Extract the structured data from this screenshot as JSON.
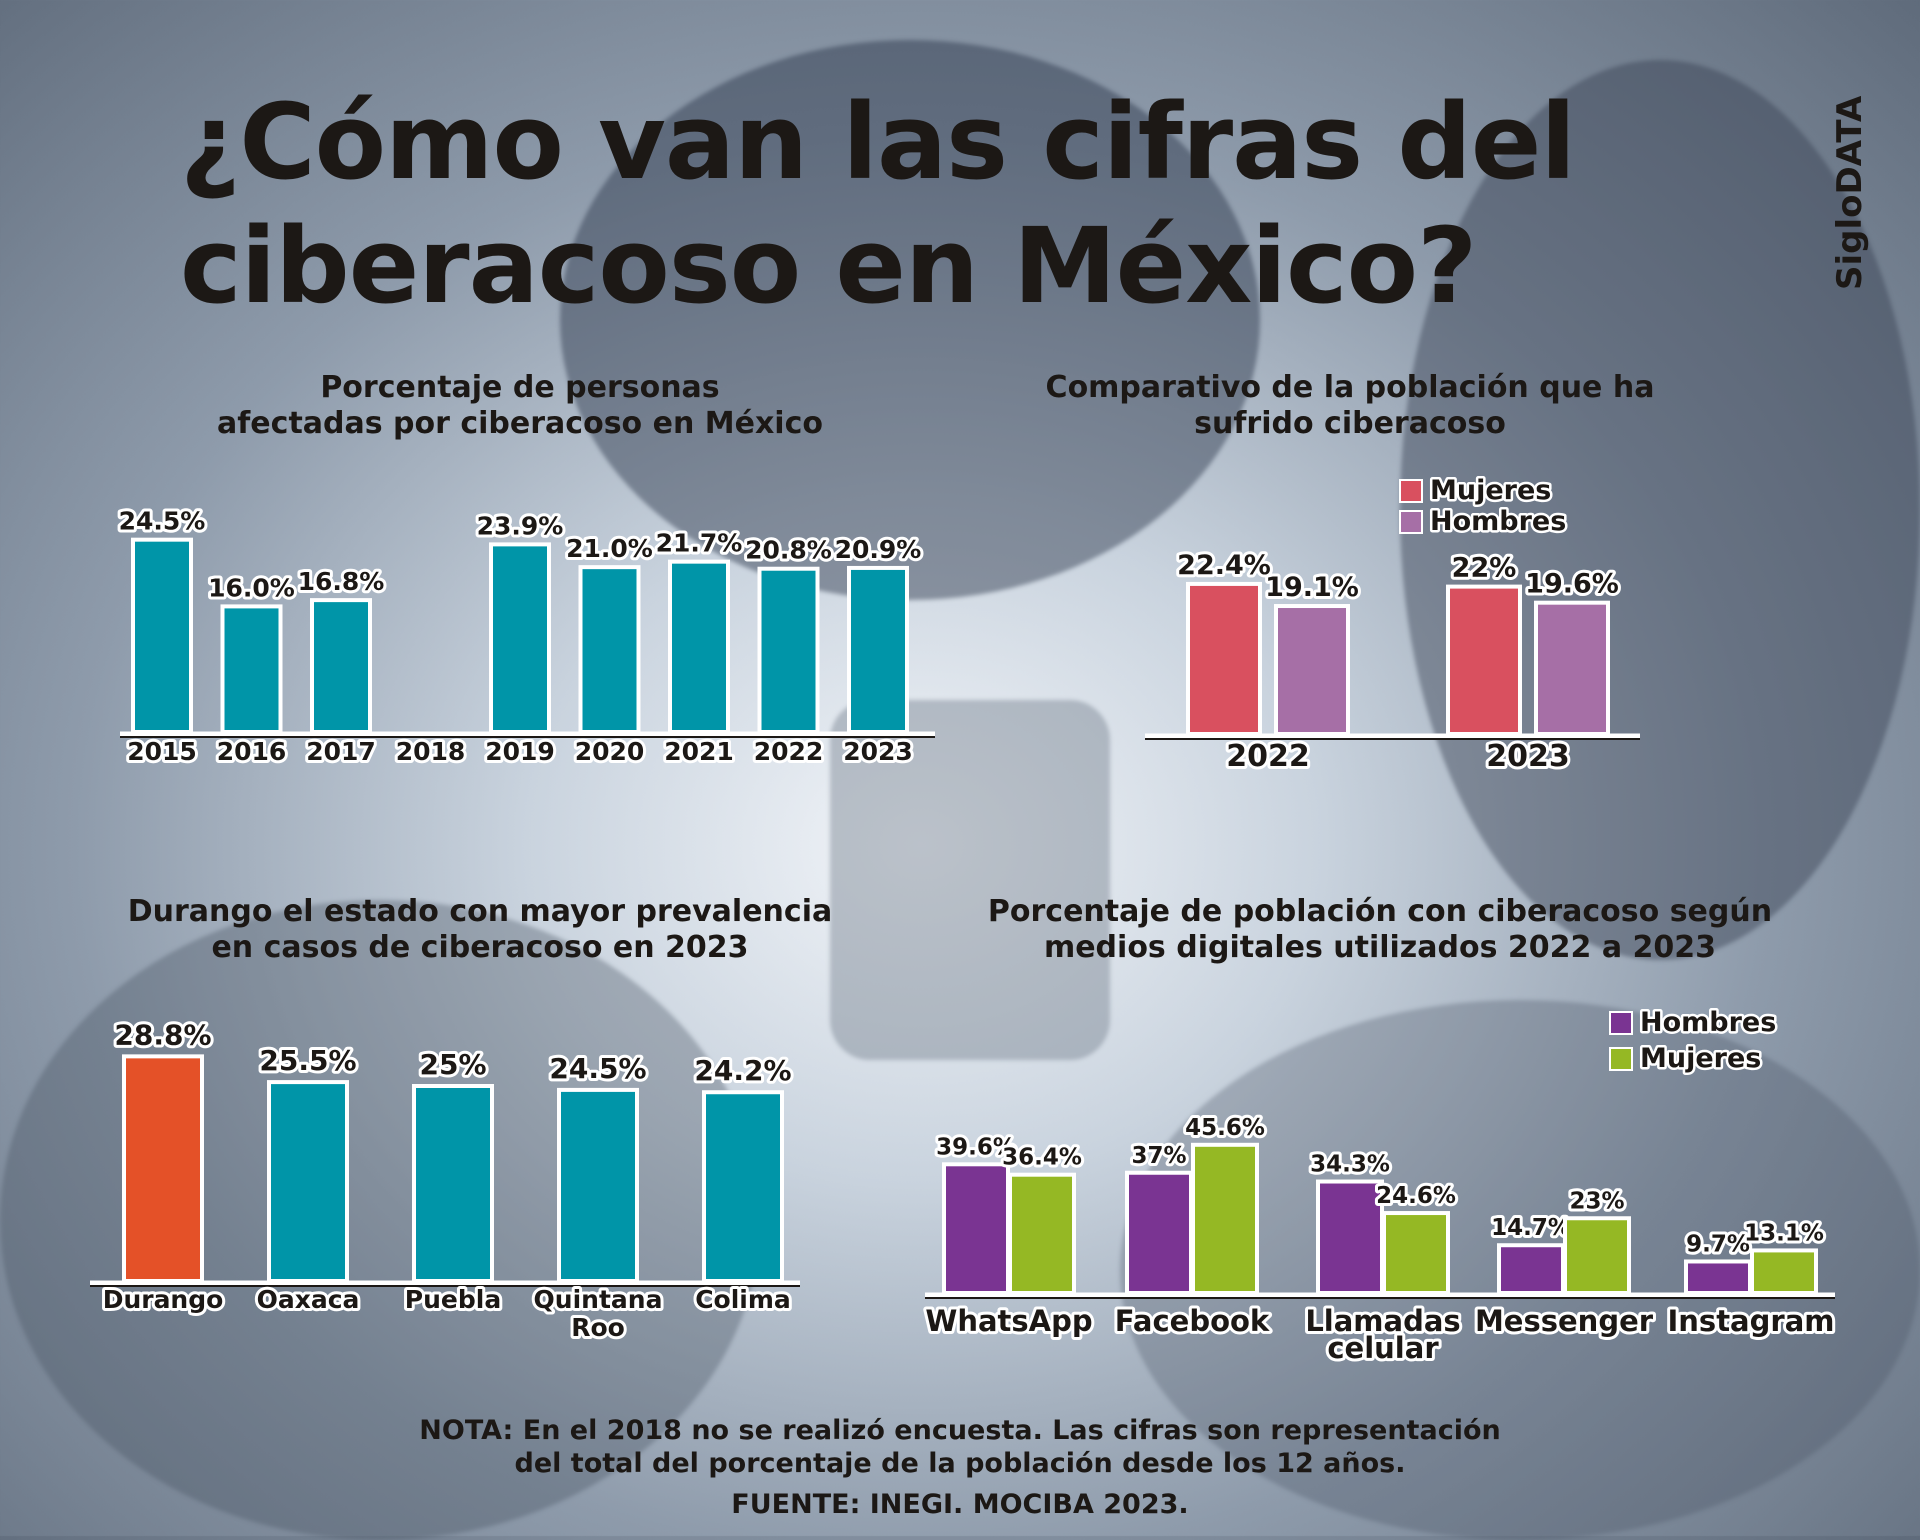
{
  "title": {
    "line1": "¿Cómo van las cifras del",
    "line2": "ciberacoso en México?"
  },
  "brand": "SigloDATA",
  "colors": {
    "teal": "#0095a8",
    "orange": "#e45128",
    "mujeres_red": "#d9505f",
    "hombres_lilac": "#a66fa6",
    "hombres_purple": "#7a3492",
    "mujeres_green": "#95b824",
    "text": "#1c1815"
  },
  "footer": {
    "nota": "NOTA: En el 2018 no se realizó encuesta. Las cifras son representación",
    "nota2": "del total del porcentaje de la población desde los 12 años.",
    "fuente": "FUENTE: INEGI. MOCIBA 2023."
  },
  "chart_data": [
    {
      "id": "by_year",
      "type": "bar",
      "title_lines": [
        "Porcentaje de personas",
        "afectadas por ciberacoso en México"
      ],
      "categories": [
        "2015",
        "2016",
        "2017",
        "2018",
        "2019",
        "2020",
        "2021",
        "2022",
        "2023"
      ],
      "values": [
        24.5,
        16.0,
        16.8,
        null,
        23.9,
        21.0,
        21.7,
        20.8,
        20.9
      ],
      "labels": [
        "24.5%",
        "16.0%",
        "16.8%",
        "",
        "23.9%",
        "21.0%",
        "21.7%",
        "20.8%",
        "20.9%"
      ],
      "color_key": "teal",
      "ylim": [
        0,
        25
      ]
    },
    {
      "id": "by_gender",
      "type": "bar",
      "title_lines": [
        "Comparativo de la población que ha",
        "sufrido ciberacoso"
      ],
      "categories": [
        "2022",
        "2023"
      ],
      "series": [
        {
          "name": "Mujeres",
          "values": [
            22.4,
            22
          ],
          "labels": [
            "22.4%",
            "22%"
          ],
          "color_key": "mujeres_red"
        },
        {
          "name": "Hombres",
          "values": [
            19.1,
            19.6
          ],
          "labels": [
            "19.1%",
            "19.6%"
          ],
          "color_key": "hombres_lilac"
        }
      ],
      "legend_position": "top-right",
      "ylim": [
        0,
        25
      ]
    },
    {
      "id": "by_state",
      "type": "bar",
      "title_lines": [
        "Durango el estado con mayor prevalencia",
        "en casos de ciberacoso en 2023"
      ],
      "categories": [
        [
          "Durango"
        ],
        [
          "Oaxaca"
        ],
        [
          "Puebla"
        ],
        [
          "Quintana",
          "Roo"
        ],
        [
          "Colima"
        ]
      ],
      "values": [
        28.8,
        25.5,
        25,
        24.5,
        24.2
      ],
      "labels": [
        "28.8%",
        "25.5%",
        "25%",
        "24.5%",
        "24.2%"
      ],
      "color_keys": [
        "orange",
        "teal",
        "teal",
        "teal",
        "teal"
      ],
      "ylim": [
        0,
        30
      ]
    },
    {
      "id": "by_media",
      "type": "bar",
      "title_lines": [
        "Porcentaje de población con ciberacoso según",
        "medios digitales utilizados 2022 a 2023"
      ],
      "categories": [
        [
          "WhatsApp"
        ],
        [
          "Facebook"
        ],
        [
          "Llamadas",
          "celular"
        ],
        [
          "Messenger"
        ],
        [
          "Instagram"
        ]
      ],
      "series": [
        {
          "name": "Hombres",
          "values": [
            39.6,
            37,
            34.3,
            14.7,
            9.7
          ],
          "labels": [
            "39.6%",
            "37%",
            "34.3%",
            "14.7%",
            "9.7%"
          ],
          "color_key": "hombres_purple"
        },
        {
          "name": "Mujeres",
          "values": [
            36.4,
            45.6,
            24.6,
            23,
            13.1
          ],
          "labels": [
            "36.4%",
            "45.6%",
            "24.6%",
            "23%",
            "13.1%"
          ],
          "color_key": "mujeres_green"
        }
      ],
      "legend_position": "top-right",
      "ylim": [
        0,
        46
      ]
    }
  ]
}
